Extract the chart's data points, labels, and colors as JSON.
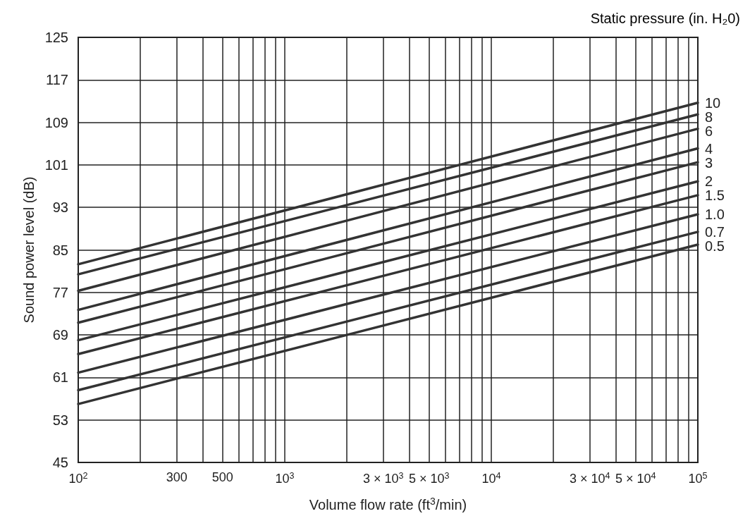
{
  "chart_data": {
    "type": "line",
    "xlabel": "Volume flow rate (ft$^{3}$/min)",
    "ylabel": "Sound power level (dB)",
    "legend_title": "Static pressure (in. H₂0)",
    "x": [
      100,
      100000
    ],
    "series": [
      {
        "name": "10",
        "color": "#333333",
        "values": [
          82.3,
          112.7
        ]
      },
      {
        "name": "8",
        "color": "#333333",
        "values": [
          80.4,
          110.5
        ]
      },
      {
        "name": "6",
        "color": "#333333",
        "values": [
          77.3,
          107.8
        ]
      },
      {
        "name": "4",
        "color": "#333333",
        "values": [
          73.7,
          104.1
        ]
      },
      {
        "name": "3",
        "color": "#333333",
        "values": [
          71.3,
          101.5
        ]
      },
      {
        "name": "2",
        "color": "#333333",
        "values": [
          68.0,
          97.9
        ]
      },
      {
        "name": "1.5",
        "color": "#333333",
        "values": [
          65.4,
          95.3
        ]
      },
      {
        "name": "1.0",
        "color": "#333333",
        "values": [
          61.9,
          91.7
        ]
      },
      {
        "name": "0.7",
        "color": "#333333",
        "values": [
          58.6,
          88.4
        ]
      },
      {
        "name": "0.5",
        "color": "#333333",
        "values": [
          56.0,
          86.0
        ]
      }
    ],
    "log": "x",
    "grid": true,
    "line_style": "solid",
    "xlim": [
      100,
      100000
    ],
    "xticks": [
      {
        "value": 100,
        "label": "10$^{2}$"
      },
      {
        "value": 200,
        "label": null
      },
      {
        "value": 300,
        "label": "300"
      },
      {
        "value": 400,
        "label": null
      },
      {
        "value": 500,
        "label": "500"
      },
      {
        "value": 600,
        "label": null
      },
      {
        "value": 700,
        "label": null
      },
      {
        "value": 800,
        "label": null
      },
      {
        "value": 900,
        "label": null
      },
      {
        "value": 1000,
        "label": "10$^{3}$"
      },
      {
        "value": 2000,
        "label": null
      },
      {
        "value": 3000,
        "label": "3 × 10$^{3}$"
      },
      {
        "value": 4000,
        "label": null
      },
      {
        "value": 5000,
        "label": "5 × 10$^{3}$"
      },
      {
        "value": 6000,
        "label": null
      },
      {
        "value": 7000,
        "label": null
      },
      {
        "value": 8000,
        "label": null
      },
      {
        "value": 9000,
        "label": null
      },
      {
        "value": 10000,
        "label": "10$^{4}$"
      },
      {
        "value": 20000,
        "label": null
      },
      {
        "value": 30000,
        "label": "3 × 10$^{4}$"
      },
      {
        "value": 40000,
        "label": null
      },
      {
        "value": 50000,
        "label": "5 × 10$^{4}$"
      },
      {
        "value": 60000,
        "label": null
      },
      {
        "value": 70000,
        "label": null
      },
      {
        "value": 80000,
        "label": null
      },
      {
        "value": 90000,
        "label": null
      },
      {
        "value": 100000,
        "label": "10$^{5}$"
      }
    ],
    "ylim": [
      45,
      125
    ],
    "yticks": [
      45,
      53,
      61,
      69,
      77,
      85,
      93,
      101,
      109,
      117,
      125
    ]
  }
}
